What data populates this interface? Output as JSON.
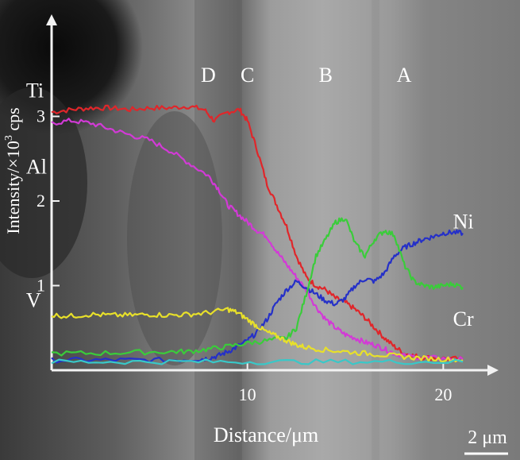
{
  "chart_data": {
    "type": "line",
    "xlabel": "Distance/μm",
    "ylabel_main": "Intensity/×10",
    "ylabel_sup": "3",
    "ylabel_unit": " cps",
    "xlim": [
      0,
      22.5
    ],
    "ylim": [
      0,
      4
    ],
    "x_ticks": [
      10,
      20
    ],
    "y_ticks": [
      1,
      2,
      3
    ],
    "scale_bar": "2 μm",
    "zone_labels": [
      {
        "text": "D",
        "x": 8
      },
      {
        "text": "C",
        "x": 10
      },
      {
        "text": "B",
        "x": 14
      },
      {
        "text": "A",
        "x": 18
      }
    ],
    "series": [
      {
        "name": "Ti",
        "color": "#e0262a",
        "label_x": -1.3,
        "label_y": 3.3,
        "points": [
          [
            0,
            3.05
          ],
          [
            1,
            3.08
          ],
          [
            2,
            3.1
          ],
          [
            3,
            3.1
          ],
          [
            4,
            3.08
          ],
          [
            5,
            3.1
          ],
          [
            6,
            3.1
          ],
          [
            7,
            3.12
          ],
          [
            7.8,
            3.08
          ],
          [
            8.3,
            2.95
          ],
          [
            9,
            3.05
          ],
          [
            9.6,
            3.08
          ],
          [
            10,
            2.95
          ],
          [
            10.5,
            2.6
          ],
          [
            11,
            2.2
          ],
          [
            11.5,
            1.95
          ],
          [
            12,
            1.7
          ],
          [
            12.5,
            1.35
          ],
          [
            13,
            1.1
          ],
          [
            13.5,
            1.0
          ],
          [
            14,
            0.95
          ],
          [
            14.5,
            0.85
          ],
          [
            15,
            0.8
          ],
          [
            15.5,
            0.72
          ],
          [
            16,
            0.62
          ],
          [
            16.5,
            0.5
          ],
          [
            17,
            0.38
          ],
          [
            17.5,
            0.28
          ],
          [
            18,
            0.2
          ],
          [
            18.5,
            0.17
          ],
          [
            19,
            0.15
          ],
          [
            20,
            0.14
          ],
          [
            21,
            0.13
          ]
        ]
      },
      {
        "name": "Al",
        "color": "#d23ad6",
        "label_x": -1.3,
        "label_y": 2.4,
        "points": [
          [
            0,
            2.92
          ],
          [
            1,
            2.95
          ],
          [
            2,
            2.92
          ],
          [
            3,
            2.85
          ],
          [
            4,
            2.78
          ],
          [
            5,
            2.72
          ],
          [
            6,
            2.6
          ],
          [
            7,
            2.45
          ],
          [
            8,
            2.3
          ],
          [
            8.5,
            2.15
          ],
          [
            9,
            1.95
          ],
          [
            9.5,
            1.85
          ],
          [
            10,
            1.75
          ],
          [
            10.5,
            1.65
          ],
          [
            11,
            1.58
          ],
          [
            11.5,
            1.4
          ],
          [
            12,
            1.25
          ],
          [
            12.5,
            1.1
          ],
          [
            13,
            0.95
          ],
          [
            13.5,
            0.75
          ],
          [
            14,
            0.6
          ],
          [
            14.5,
            0.5
          ],
          [
            15,
            0.42
          ],
          [
            15.5,
            0.38
          ],
          [
            16,
            0.33
          ],
          [
            16.5,
            0.3
          ],
          [
            17,
            0.25
          ],
          [
            17.5,
            0.2
          ],
          [
            18,
            0.17
          ],
          [
            19,
            0.15
          ],
          [
            20,
            0.14
          ],
          [
            21,
            0.13
          ]
        ]
      },
      {
        "name": "Ni",
        "color": "#2530c8",
        "label_x": 20.5,
        "label_y": 1.75,
        "points": [
          [
            0,
            0.12
          ],
          [
            2,
            0.12
          ],
          [
            4,
            0.12
          ],
          [
            6,
            0.12
          ],
          [
            7.5,
            0.13
          ],
          [
            8,
            0.14
          ],
          [
            8.5,
            0.17
          ],
          [
            9,
            0.22
          ],
          [
            9.5,
            0.28
          ],
          [
            10,
            0.35
          ],
          [
            10.5,
            0.45
          ],
          [
            11,
            0.6
          ],
          [
            11.5,
            0.8
          ],
          [
            12,
            0.95
          ],
          [
            12.5,
            1.05
          ],
          [
            13,
            0.98
          ],
          [
            13.5,
            0.9
          ],
          [
            14,
            0.82
          ],
          [
            14.5,
            0.78
          ],
          [
            15,
            0.85
          ],
          [
            15.5,
            1.0
          ],
          [
            16,
            1.08
          ],
          [
            16.5,
            1.05
          ],
          [
            17,
            1.15
          ],
          [
            17.5,
            1.35
          ],
          [
            18,
            1.45
          ],
          [
            18.5,
            1.5
          ],
          [
            19,
            1.55
          ],
          [
            19.5,
            1.58
          ],
          [
            20,
            1.62
          ],
          [
            20.5,
            1.63
          ],
          [
            21,
            1.62
          ]
        ]
      },
      {
        "name": "Cr",
        "color": "#3acc3a",
        "label_x": 20.5,
        "label_y": 0.6,
        "points": [
          [
            0,
            0.2
          ],
          [
            2,
            0.2
          ],
          [
            4,
            0.21
          ],
          [
            6,
            0.22
          ],
          [
            7,
            0.22
          ],
          [
            8,
            0.25
          ],
          [
            9,
            0.28
          ],
          [
            10,
            0.32
          ],
          [
            11,
            0.35
          ],
          [
            12,
            0.38
          ],
          [
            12.5,
            0.5
          ],
          [
            13,
            0.9
          ],
          [
            13.5,
            1.35
          ],
          [
            14,
            1.55
          ],
          [
            14.5,
            1.75
          ],
          [
            15,
            1.8
          ],
          [
            15.5,
            1.5
          ],
          [
            16,
            1.35
          ],
          [
            16.5,
            1.55
          ],
          [
            17,
            1.65
          ],
          [
            17.5,
            1.6
          ],
          [
            18,
            1.25
          ],
          [
            18.5,
            1.05
          ],
          [
            19,
            1.0
          ],
          [
            19.5,
            0.98
          ],
          [
            20,
            1.0
          ],
          [
            20.5,
            1.02
          ],
          [
            21,
            0.98
          ]
        ]
      },
      {
        "name": "V",
        "color": "#e8e02a",
        "label_x": -1.3,
        "label_y": 0.82,
        "points": [
          [
            0,
            0.65
          ],
          [
            1,
            0.64
          ],
          [
            2,
            0.66
          ],
          [
            3,
            0.65
          ],
          [
            4,
            0.65
          ],
          [
            5,
            0.66
          ],
          [
            6,
            0.65
          ],
          [
            7,
            0.66
          ],
          [
            8,
            0.68
          ],
          [
            9,
            0.72
          ],
          [
            9.5,
            0.68
          ],
          [
            10,
            0.6
          ],
          [
            10.5,
            0.52
          ],
          [
            11,
            0.45
          ],
          [
            11.5,
            0.4
          ],
          [
            12,
            0.35
          ],
          [
            12.5,
            0.3
          ],
          [
            13,
            0.27
          ],
          [
            14,
            0.24
          ],
          [
            15,
            0.22
          ],
          [
            16,
            0.2
          ],
          [
            17,
            0.18
          ],
          [
            18,
            0.16
          ],
          [
            19,
            0.14
          ],
          [
            20,
            0.13
          ],
          [
            21,
            0.12
          ]
        ]
      },
      {
        "name": "",
        "color": "#39c8c8",
        "points": [
          [
            0,
            0.1
          ],
          [
            3,
            0.1
          ],
          [
            6,
            0.1
          ],
          [
            9,
            0.1
          ],
          [
            12,
            0.1
          ],
          [
            15,
            0.1
          ],
          [
            18,
            0.1
          ],
          [
            21,
            0.1
          ]
        ]
      }
    ]
  }
}
